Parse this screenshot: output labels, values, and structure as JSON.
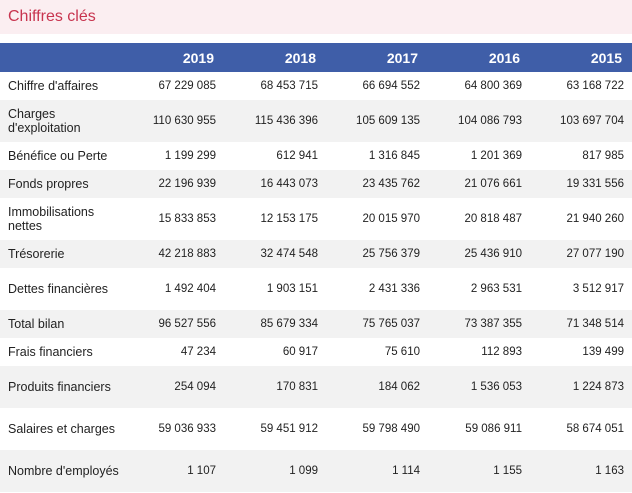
{
  "title": "Chiffres clés",
  "columns": [
    "2019",
    "2018",
    "2017",
    "2016",
    "2015"
  ],
  "rows": [
    {
      "label": "Chiffre d'affaires",
      "values": [
        "67 229 085",
        "68 453 715",
        "66 694 552",
        "64 800 369",
        "63 168 722"
      ]
    },
    {
      "label": "Charges d'exploitation",
      "values": [
        "110 630 955",
        "115 436 396",
        "105 609 135",
        "104 086 793",
        "103 697 704"
      ]
    },
    {
      "label": "Bénéfice ou Perte",
      "values": [
        "1 199 299",
        "612 941",
        "1 316 845",
        "1 201 369",
        "817 985"
      ]
    },
    {
      "label": "Fonds propres",
      "values": [
        "22 196 939",
        "16 443 073",
        "23 435 762",
        "21 076 661",
        "19 331 556"
      ]
    },
    {
      "label": "Immobilisations nettes",
      "values": [
        "15 833 853",
        "12 153 175",
        "20 015 970",
        "20 818 487",
        "21 940 260"
      ]
    },
    {
      "label": "Trésorerie",
      "values": [
        "42 218 883",
        "32 474 548",
        "25 756 379",
        "25 436 910",
        "27 077 190"
      ]
    },
    {
      "label": "Dettes financières",
      "values": [
        "1 492 404",
        "1 903 151",
        "2 431 336",
        "2 963 531",
        "3 512 917"
      ]
    },
    {
      "label": "Total bilan",
      "values": [
        "96 527 556",
        "85 679 334",
        "75 765 037",
        "73 387 355",
        "71 348 514"
      ]
    },
    {
      "label": "Frais financiers",
      "values": [
        "47 234",
        "60 917",
        "75 610",
        "112 893",
        "139 499"
      ]
    },
    {
      "label": "Produits financiers",
      "values": [
        "254 094",
        "170 831",
        "184 062",
        "1 536 053",
        "1 224 873"
      ]
    },
    {
      "label": "Salaires et charges",
      "values": [
        "59 036 933",
        "59 451 912",
        "59 798 490",
        "59 086 911",
        "58 674 051"
      ]
    },
    {
      "label": "Nombre d'employés",
      "values": [
        "1 107",
        "1 099",
        "1 114",
        "1 155",
        "1 163"
      ]
    }
  ]
}
